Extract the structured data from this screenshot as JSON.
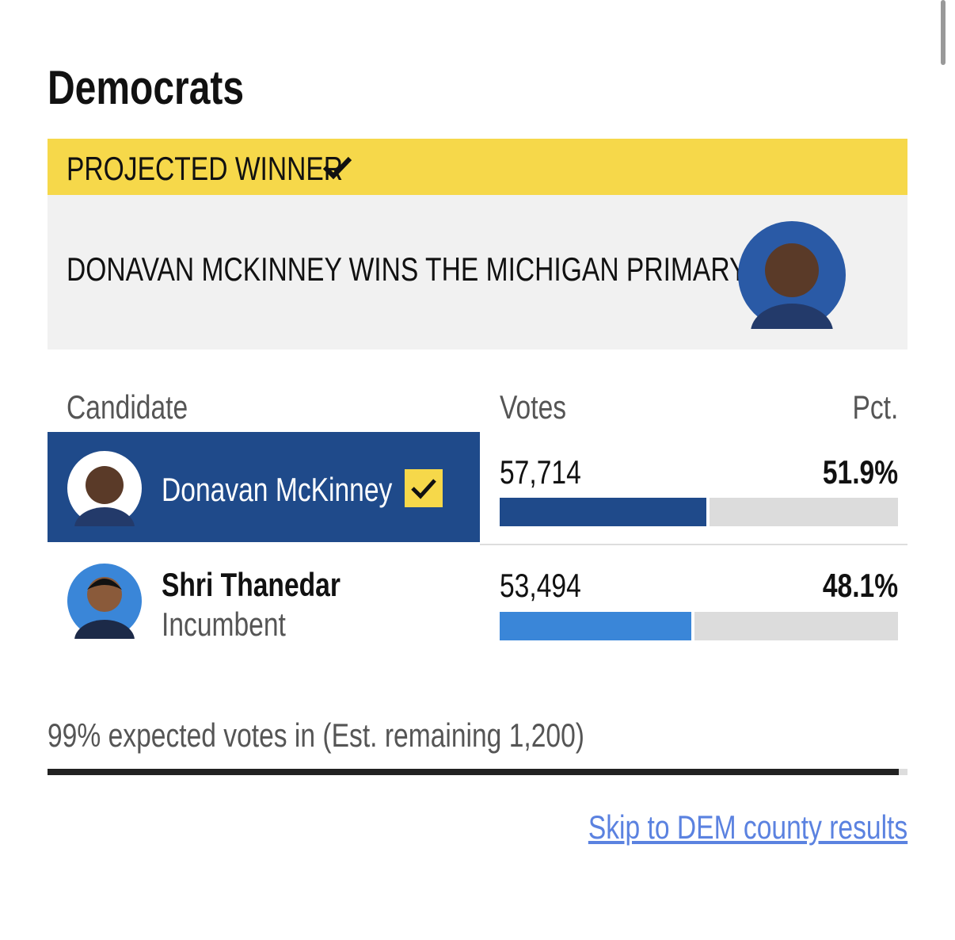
{
  "section_title": "Democrats",
  "banner": {
    "label": "PROJECTED WINNER",
    "headline": "DONAVAN MCKINNEY WINS THE MICHIGAN PRIMARY"
  },
  "table": {
    "headers": [
      "Candidate",
      "Votes",
      "Pct."
    ],
    "rows": [
      {
        "name": "Donavan McKinney",
        "votes": "57,714",
        "pct": {
          "value": 51.9,
          "label": "51.9%"
        },
        "winner": true
      },
      {
        "name": "Shri Thanedar",
        "note": "Incumbent",
        "votes": "53,494",
        "pct": {
          "value": 48.1,
          "label": "48.1%"
        },
        "winner": false
      }
    ]
  },
  "expected": {
    "value": 99,
    "label": "99% expected votes in (Est. remaining 1,200)"
  },
  "link": "Skip to DEM county results"
}
